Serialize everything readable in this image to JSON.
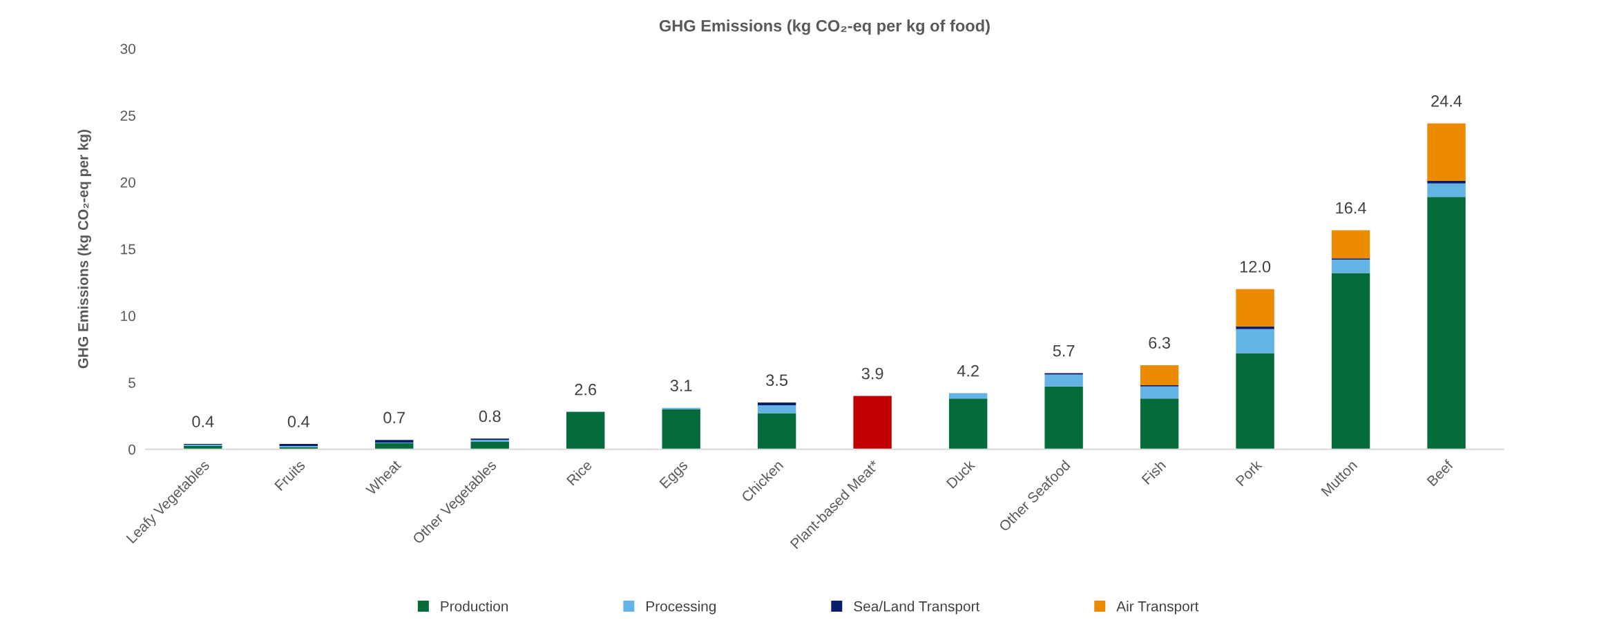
{
  "chart_data": {
    "type": "bar",
    "stacked": true,
    "title": "GHG Emissions (kg CO₂-eq per kg of food)",
    "ylabel": "GHG Emissions (kg CO₂-eq per kg)",
    "categories": [
      "Leafy Vegetables",
      "Fruits",
      "Wheat",
      "Other Vegetables",
      "Rice",
      "Eggs",
      "Chicken",
      "Plant-based Meat*",
      "Duck",
      "Other Seafood",
      "Fish",
      "Pork",
      "Mutton",
      "Beef"
    ],
    "series": [
      {
        "name": "Production",
        "color": "#056b3a",
        "colors": [
          "#056b3a",
          "#056b3a",
          "#056b3a",
          "#056b3a",
          "#056b3a",
          "#056b3a",
          "#056b3a",
          "#c00000",
          "#056b3a",
          "#056b3a",
          "#056b3a",
          "#056b3a",
          "#056b3a",
          "#056b3a"
        ],
        "values": [
          0.25,
          0.15,
          0.45,
          0.55,
          2.8,
          3.0,
          2.7,
          4.0,
          3.8,
          4.7,
          3.8,
          7.2,
          13.2,
          18.9
        ]
      },
      {
        "name": "Processing",
        "color": "#63b4e4",
        "values": [
          0.1,
          0.1,
          0.05,
          0.15,
          null,
          0.1,
          0.6,
          null,
          0.4,
          0.9,
          0.9,
          1.8,
          1.0,
          1.0
        ]
      },
      {
        "name": "Sea/Land Transport",
        "color": "#0a1f6b",
        "values": [
          0.05,
          0.15,
          0.2,
          0.1,
          null,
          null,
          0.2,
          null,
          null,
          0.1,
          0.1,
          0.2,
          0.1,
          0.2
        ]
      },
      {
        "name": "Air Transport",
        "color": "#ec8a00",
        "values": [
          null,
          null,
          null,
          null,
          null,
          null,
          null,
          null,
          null,
          null,
          1.5,
          2.8,
          2.1,
          4.3
        ]
      }
    ],
    "totals": [
      "0.4",
      "0.4",
      "0.7",
      "0.8",
      "2.6",
      "3.1",
      "3.5",
      "3.9",
      "4.2",
      "5.7",
      "6.3",
      "12.0",
      "16.4",
      "24.4"
    ],
    "ylim": [
      0,
      30
    ],
    "yticks": [
      0,
      5,
      10,
      15,
      20,
      25,
      30
    ],
    "grid": false,
    "legend": "bottom"
  }
}
